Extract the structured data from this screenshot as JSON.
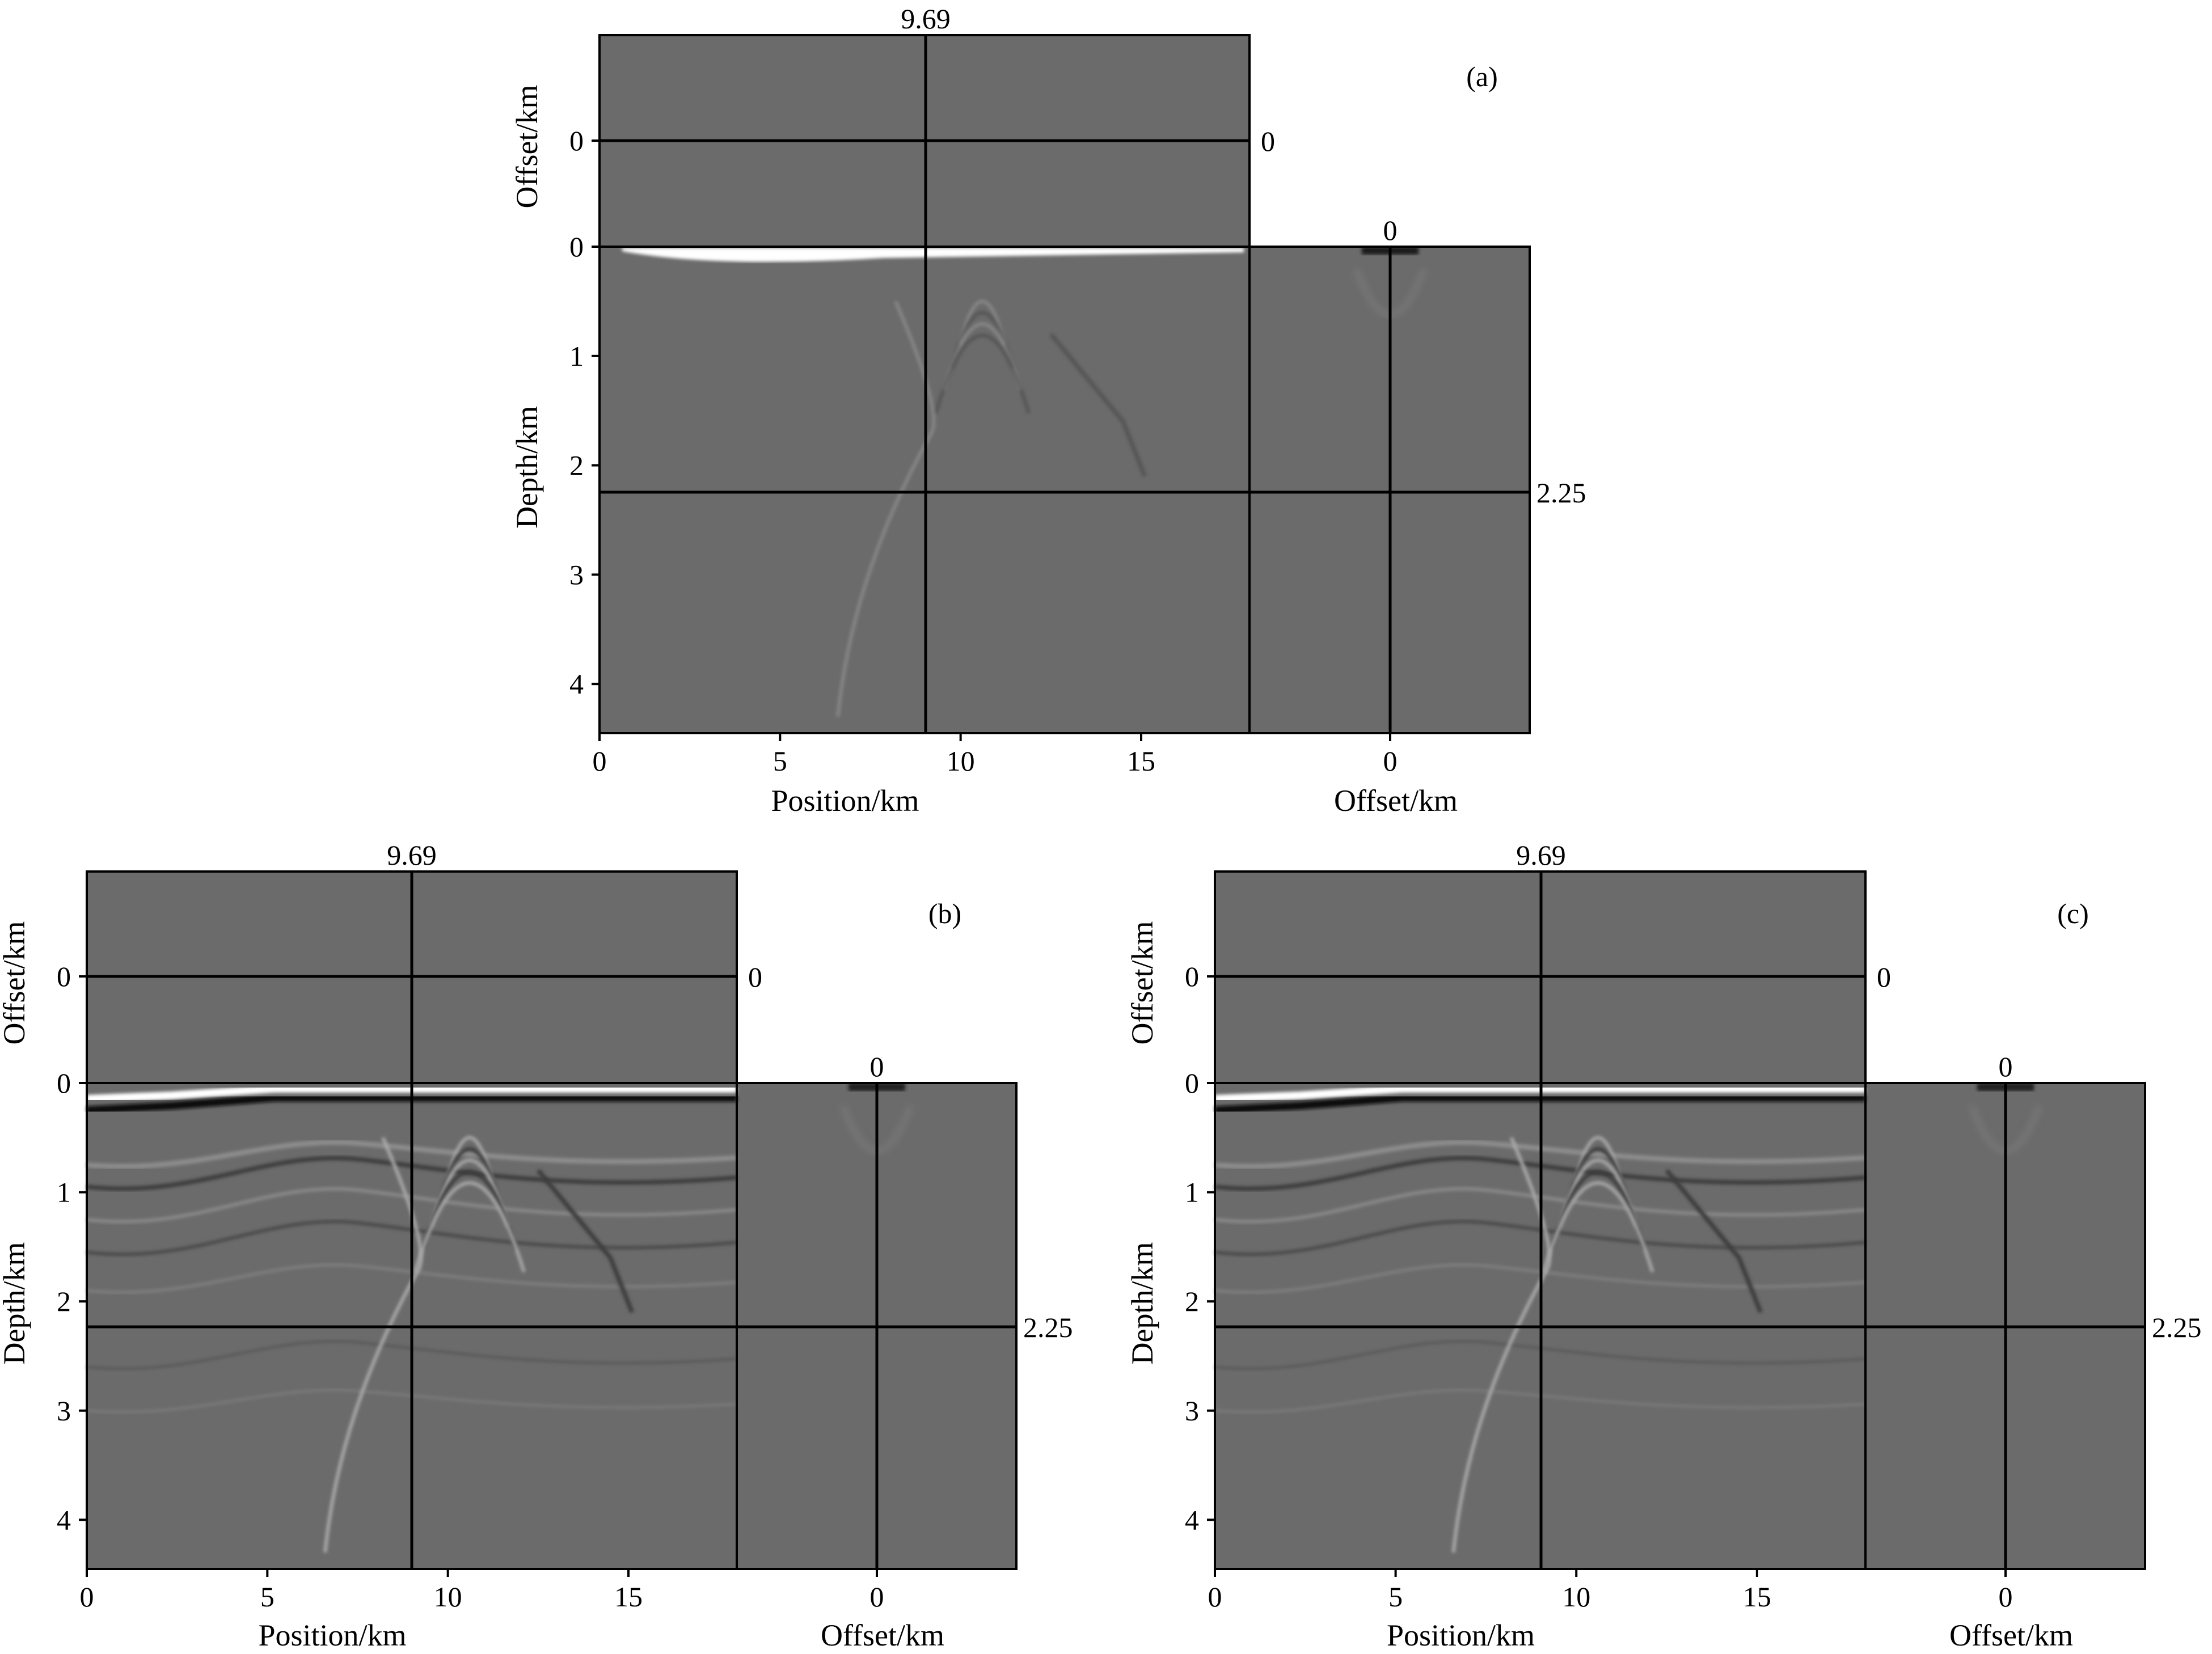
{
  "figure": {
    "panels": [
      {
        "id": "a",
        "label": "(a)",
        "cursor_position": "9.69",
        "cursor_offset": "0",
        "cursor_offset_right": "0",
        "cursor_depth": "2.25",
        "position_label": "Position/km",
        "offset_label_bottom": "Offset/km",
        "offset_label_left": "Offset/km",
        "depth_label": "Depth/km",
        "position_ticks": [
          "0",
          "5",
          "10",
          "15"
        ],
        "offset_tick_bottom": "0",
        "offset_tick_left": "0",
        "depth_ticks": [
          "0",
          "1",
          "2",
          "3",
          "4"
        ]
      },
      {
        "id": "b",
        "label": "(b)",
        "cursor_position": "9.69",
        "cursor_offset": "0",
        "cursor_offset_right": "0",
        "cursor_depth": "2.25",
        "position_label": "Position/km",
        "offset_label_bottom": "Offset/km",
        "offset_label_left": "Offset/km",
        "depth_label": "Depth/km",
        "position_ticks": [
          "0",
          "5",
          "10",
          "15"
        ],
        "offset_tick_bottom": "0",
        "offset_tick_left": "0",
        "depth_ticks": [
          "0",
          "1",
          "2",
          "3",
          "4"
        ]
      },
      {
        "id": "c",
        "label": "(c)",
        "cursor_position": "9.69",
        "cursor_offset": "0",
        "cursor_offset_right": "0",
        "cursor_depth": "2.25",
        "position_label": "Position/km",
        "offset_label_bottom": "Offset/km",
        "offset_label_left": "Offset/km",
        "depth_label": "Depth/km",
        "position_ticks": [
          "0",
          "5",
          "10",
          "15"
        ],
        "offset_tick_bottom": "0",
        "offset_tick_left": "0",
        "depth_ticks": [
          "0",
          "1",
          "2",
          "3",
          "4"
        ]
      }
    ],
    "colors": {
      "background_gray": "#6b6b6b",
      "reflector_white": "#ffffff",
      "reflector_black": "#111111",
      "line": "#000000"
    }
  }
}
